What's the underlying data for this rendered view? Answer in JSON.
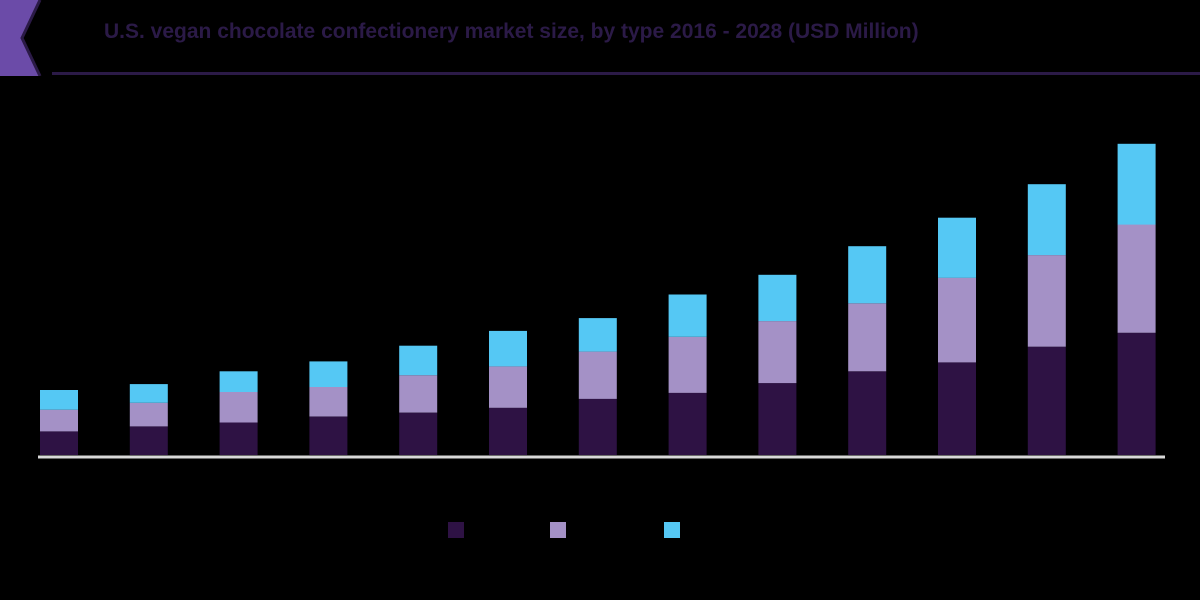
{
  "title": "U.S. vegan chocolate confectionery market size, by type 2016 - 2028 (USD Million)",
  "colors": {
    "header_accent": "#6b4ba8",
    "title": "#2b1a47",
    "background": "#000000",
    "axis": "#d9d9d9"
  },
  "chart_data": {
    "type": "bar",
    "stacked": true,
    "categories": [
      "",
      "",
      "",
      "",
      "",
      "",
      "",
      "",
      "",
      "",
      "",
      "",
      ""
    ],
    "ylim": [
      0,
      330
    ],
    "grid": false,
    "legend_position": "bottom",
    "series": [
      {
        "name": "",
        "color": "#2e1244",
        "values": [
          24,
          29,
          33,
          39,
          43,
          48,
          57,
          63,
          73,
          85,
          94,
          110,
          124
        ]
      },
      {
        "name": "",
        "color": "#a491c6",
        "values": [
          22,
          24,
          31,
          30,
          38,
          42,
          48,
          57,
          63,
          69,
          86,
          93,
          110
        ]
      },
      {
        "name": "",
        "color": "#55c8f4",
        "values": [
          20,
          19,
          21,
          26,
          30,
          36,
          34,
          43,
          47,
          58,
          61,
          72,
          82
        ]
      }
    ]
  },
  "legend": [
    {
      "label": "",
      "color": "#2e1244"
    },
    {
      "label": "",
      "color": "#a491c6"
    },
    {
      "label": "",
      "color": "#55c8f4"
    }
  ]
}
